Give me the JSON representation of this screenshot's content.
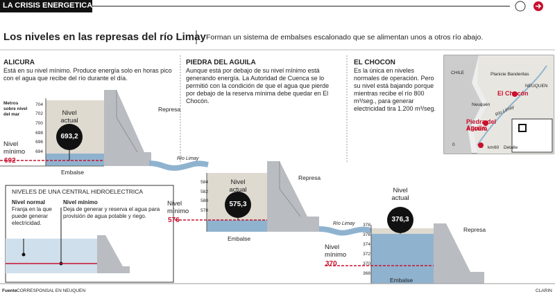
{
  "header": {
    "section": "LA CRISIS ENERGETICA",
    "title": "Los niveles en las represas del río Limay",
    "subtitle": "Forman un sistema de embalses escalonado que se alimentan unos a otros río abajo."
  },
  "dams": [
    {
      "name": "ALICURA",
      "description": "Está en su nivel mínimo. Produce energía solo en horas pico con el agua que recibe del río durante el día.",
      "scale_title": "Metros sobre nivel del mar",
      "ticks": [
        "704",
        "702",
        "700",
        "698",
        "696",
        "694"
      ],
      "current_label": "Nivel actual",
      "current": "693,2",
      "minimum_label": "Nivel mínimo",
      "minimum": "692",
      "dam_label": "Represa",
      "reservoir_label": "Embalse"
    },
    {
      "name": "PIEDRA DEL AGUILA",
      "description": "Aunque está por debajo de su nivel mínimo está generando energía. La Autoridad de Cuenca se lo permitió con la condición de que el agua que pierde por debajo de la reserva mínima debe quedar en El Chocón.",
      "ticks": [
        "584",
        "582",
        "580",
        "578"
      ],
      "current_label": "Nivel actual",
      "current": "575,3",
      "minimum_label": "Nivel mínimo",
      "minimum": "576",
      "dam_label": "Represa",
      "reservoir_label": "Embalse"
    },
    {
      "name": "EL CHOCON",
      "description": "Es la única en niveles normales de operación. Pero su nivel está bajando porque mientras recibe el río 800 m³/seg., para generar electricidad tira 1.200 m³/seg.",
      "ticks": [
        "378",
        "376",
        "374",
        "372",
        "370",
        "368"
      ],
      "current_label": "Nivel actual",
      "current": "376,3",
      "minimum_label": "Nivel mínimo",
      "minimum": "370",
      "dam_label": "Represa",
      "reservoir_label": "Embalse"
    }
  ],
  "river_labels": [
    "Río Limay",
    "Río Limay"
  ],
  "inset": {
    "title": "NIVELES DE UNA CENTRAL HIDROELECTRICA",
    "normal_label": "Nivel normal",
    "normal_text": "Franja en la que puede generar electricidad.",
    "minimum_label": "Nivel mínimo",
    "minimum_text": "Deja de generar y reserva el agua para provisión de agua potable y riego."
  },
  "map": {
    "labels": [
      "CHILE",
      "Planicie Banderitas",
      "NEUQUEN",
      "El Chocón",
      "Neuquén",
      "Río Limay",
      "Piedra del Aguila",
      "Alicurá",
      "0",
      "km",
      "60",
      "Detalle"
    ]
  },
  "footer": {
    "source_label": "Fuente",
    "source": "CORRESPONSAL EN NEUQUEN",
    "brand": "CLARIN"
  }
}
